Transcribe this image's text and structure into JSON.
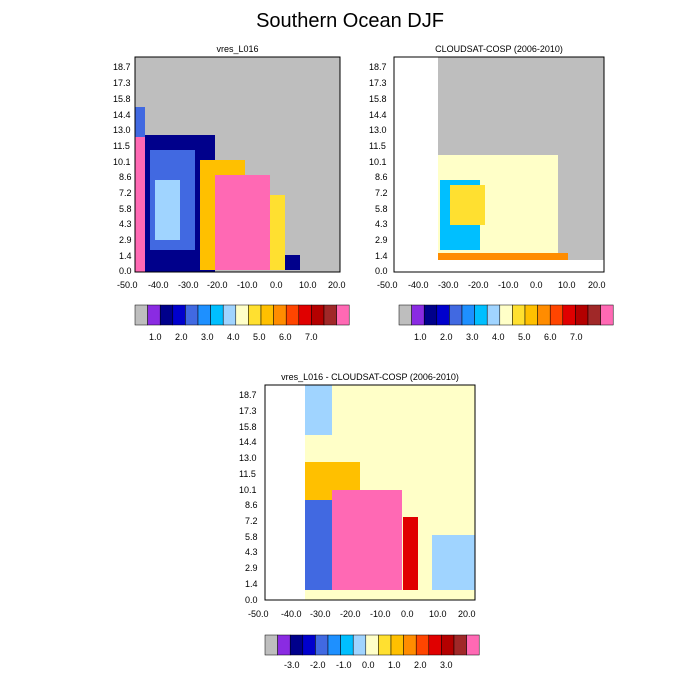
{
  "figure": {
    "title": "Southern Ocean DJF"
  },
  "chart_data": [
    {
      "type": "heatmap",
      "title": "vres_L016",
      "x_ticks": [
        "-50.0",
        "-40.0",
        "-30.0",
        "-20.0",
        "-10.0",
        "0.0",
        "10.0",
        "20.0"
      ],
      "y_ticks": [
        "0.0",
        "1.4",
        "2.9",
        "4.3",
        "5.8",
        "7.2",
        "8.6",
        "10.1",
        "11.5",
        "13.0",
        "14.4",
        "15.8",
        "17.3",
        "18.7"
      ],
      "colorbar": {
        "labels": [
          "1.0",
          "2.0",
          "3.0",
          "4.0",
          "5.0",
          "6.0",
          "7.0"
        ],
        "colors": [
          "#bebebe",
          "#8a2be2",
          "#00008b",
          "#0000cd",
          "#4169e1",
          "#1e90ff",
          "#00bfff",
          "#a0d4ff",
          "#ffffc8",
          "#ffe030",
          "#ffc000",
          "#ff8c00",
          "#ff4500",
          "#e00000",
          "#b40000",
          "#a02828",
          "#ff69b4"
        ]
      },
      "regions": [
        {
          "x": [
            -50,
            20
          ],
          "y": [
            0,
            18.7
          ],
          "value_class": "#bebebe"
        },
        {
          "x": [
            -50,
            -47
          ],
          "y": [
            0,
            12.3
          ],
          "value_class": "#ff69b4"
        },
        {
          "x": [
            -50,
            -47
          ],
          "y": [
            12.3,
            15
          ],
          "value_class": "#4169e1"
        },
        {
          "x": [
            -47,
            -20
          ],
          "y": [
            0,
            12.5
          ],
          "value_class": "#00008b"
        },
        {
          "x": [
            -47,
            -30
          ],
          "y": [
            1,
            10.5
          ],
          "value_class": "#4169e1"
        },
        {
          "x": [
            -45,
            -35
          ],
          "y": [
            3,
            8
          ],
          "value_class": "#a0d4ff"
        },
        {
          "x": [
            -20,
            -5
          ],
          "y": [
            0,
            10.1
          ],
          "value_class": "#ffc000"
        },
        {
          "x": [
            -15,
            -5
          ],
          "y": [
            0,
            8.5
          ],
          "value_class": "#ff69b4"
        },
        {
          "x": [
            -5,
            5
          ],
          "y": [
            0,
            7
          ],
          "value_class": "#ff69b4"
        },
        {
          "x": [
            5,
            10
          ],
          "y": [
            0,
            5.8
          ],
          "value_class": "#ffe030"
        },
        {
          "x": [
            8,
            10
          ],
          "y": [
            0,
            1.4
          ],
          "value_class": "#00008b"
        }
      ]
    },
    {
      "type": "heatmap",
      "title": "CLOUDSAT-COSP (2006-2010)",
      "x_ticks": [
        "-50.0",
        "-40.0",
        "-30.0",
        "-20.0",
        "-10.0",
        "0.0",
        "10.0",
        "20.0"
      ],
      "y_ticks": [
        "0.0",
        "1.4",
        "2.9",
        "4.3",
        "5.8",
        "7.2",
        "8.6",
        "10.1",
        "11.5",
        "13.0",
        "14.4",
        "15.8",
        "17.3",
        "18.7"
      ],
      "colorbar": {
        "labels": [
          "1.0",
          "2.0",
          "3.0",
          "4.0",
          "5.0",
          "6.0",
          "7.0"
        ],
        "colors": [
          "#bebebe",
          "#8a2be2",
          "#00008b",
          "#0000cd",
          "#4169e1",
          "#1e90ff",
          "#00bfff",
          "#a0d4ff",
          "#ffffc8",
          "#ffe030",
          "#ffc000",
          "#ff8c00",
          "#ff4500",
          "#e00000",
          "#b40000",
          "#a02828",
          "#ff69b4"
        ]
      },
      "regions": [
        {
          "x": [
            -38,
            20
          ],
          "y": [
            0,
            18.7
          ],
          "value_class": "#bebebe"
        },
        {
          "x": [
            -50,
            -38
          ],
          "y": [
            0,
            18.7
          ],
          "value_class": "#ffffff"
        },
        {
          "x": [
            -50,
            20
          ],
          "y": [
            0,
            1
          ],
          "value_class": "#ffffff"
        },
        {
          "x": [
            -37,
            5
          ],
          "y": [
            1,
            10
          ],
          "value_class": "#ffffc8"
        },
        {
          "x": [
            -35,
            -25
          ],
          "y": [
            2,
            8
          ],
          "value_class": "#00bfff"
        },
        {
          "x": [
            -30,
            -20
          ],
          "y": [
            4,
            8.5
          ],
          "value_class": "#ffe030"
        },
        {
          "x": [
            -37,
            10
          ],
          "y": [
            0.8,
            1.4
          ],
          "value_class": "#ff8c00"
        }
      ]
    },
    {
      "type": "heatmap",
      "title": "vres_L016 - CLOUDSAT-COSP (2006-2010)",
      "x_ticks": [
        "-50.0",
        "-40.0",
        "-30.0",
        "-20.0",
        "-10.0",
        "0.0",
        "10.0",
        "20.0"
      ],
      "y_ticks": [
        "0.0",
        "1.4",
        "2.9",
        "4.3",
        "5.8",
        "7.2",
        "8.6",
        "10.1",
        "11.5",
        "13.0",
        "14.4",
        "15.8",
        "17.3",
        "18.7"
      ],
      "colorbar": {
        "labels": [
          "-3.0",
          "-2.0",
          "-1.0",
          "0.0",
          "1.0",
          "2.0",
          "3.0"
        ],
        "colors": [
          "#bebebe",
          "#8a2be2",
          "#00008b",
          "#0000cd",
          "#4169e1",
          "#1e90ff",
          "#00bfff",
          "#a0d4ff",
          "#ffffc8",
          "#ffe030",
          "#ffc000",
          "#ff8c00",
          "#ff4500",
          "#e00000",
          "#b40000",
          "#a02828",
          "#ff69b4"
        ]
      },
      "regions": [
        {
          "x": [
            -38,
            20
          ],
          "y": [
            0,
            18.7
          ],
          "value_class": "#ffffc8"
        },
        {
          "x": [
            -38,
            -30
          ],
          "y": [
            15,
            18.7
          ],
          "value_class": "#a0d4ff"
        },
        {
          "x": [
            -38,
            -30
          ],
          "y": [
            1,
            9
          ],
          "value_class": "#4169e1"
        },
        {
          "x": [
            -38,
            -20
          ],
          "y": [
            9,
            12.3
          ],
          "value_class": "#ffc000"
        },
        {
          "x": [
            -25,
            -5
          ],
          "y": [
            1,
            10
          ],
          "value_class": "#ff69b4"
        },
        {
          "x": [
            0,
            5
          ],
          "y": [
            1,
            7
          ],
          "value_class": "#e00000"
        },
        {
          "x": [
            10,
            20
          ],
          "y": [
            1,
            5.5
          ],
          "value_class": "#a0d4ff"
        }
      ]
    }
  ]
}
